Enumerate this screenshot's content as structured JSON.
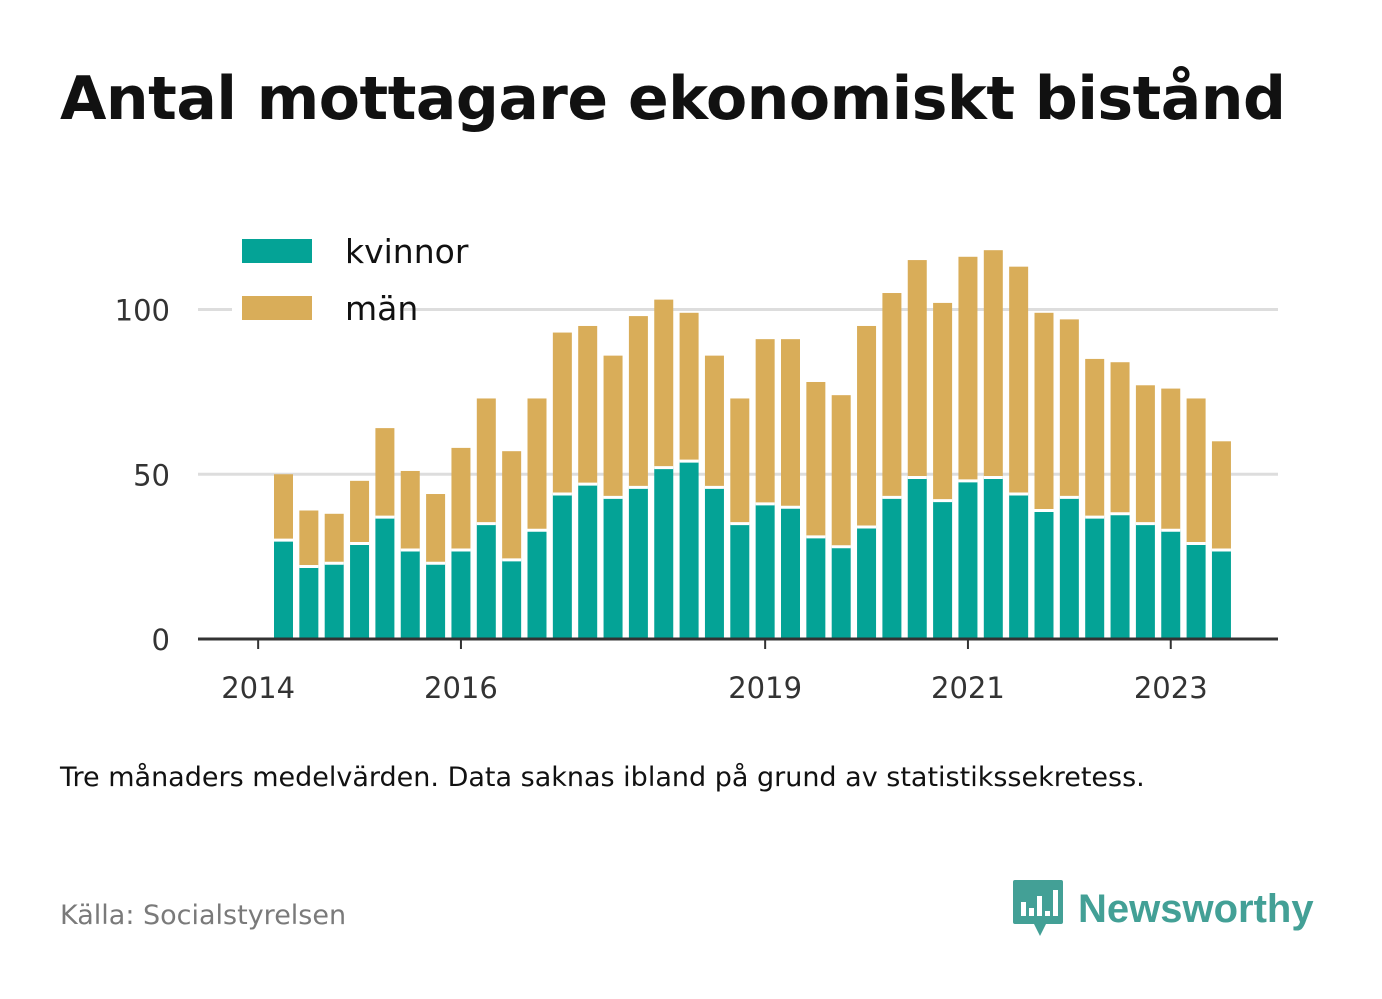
{
  "title": "Antal mottagare ekonomiskt bistånd",
  "note": "Tre månaders medelvärden. Data saknas ibland på grund av statistikssekretess.",
  "source": "Källa: Socialstyrelsen",
  "brand": {
    "name": "Newsworthy",
    "logo_icon": "newsworthy-chart-bubble-icon",
    "color": "#43a096"
  },
  "colors": {
    "kvinnor": "#04a396",
    "man": "#d9ad59",
    "grid": "#dddddd",
    "axis": "#333333"
  },
  "chart_data": {
    "type": "bar",
    "stacked": true,
    "legend_position": "top-left",
    "grid": true,
    "ylim": [
      0,
      120
    ],
    "yticks": [
      0,
      50,
      100
    ],
    "xlabel": "",
    "ylabel": "",
    "x_ticks": [
      {
        "label": "2014",
        "index": -1
      },
      {
        "label": "2016",
        "index": 7
      },
      {
        "label": "2019",
        "index": 19
      },
      {
        "label": "2021",
        "index": 27
      },
      {
        "label": "2023",
        "index": 35
      }
    ],
    "series": [
      {
        "name": "kvinnor",
        "values": [
          30,
          22,
          23,
          29,
          37,
          27,
          23,
          27,
          35,
          24,
          33,
          44,
          47,
          43,
          46,
          52,
          54,
          46,
          35,
          41,
          40,
          31,
          28,
          34,
          43,
          49,
          42,
          48,
          49,
          44,
          39,
          43,
          37,
          38,
          35,
          33,
          29,
          27
        ]
      },
      {
        "name": "män",
        "values": [
          20,
          17,
          15,
          19,
          27,
          24,
          21,
          31,
          38,
          33,
          40,
          49,
          48,
          43,
          52,
          51,
          45,
          40,
          38,
          50,
          51,
          47,
          46,
          61,
          62,
          66,
          60,
          68,
          69,
          69,
          60,
          54,
          48,
          46,
          42,
          43,
          44,
          33
        ]
      }
    ]
  }
}
